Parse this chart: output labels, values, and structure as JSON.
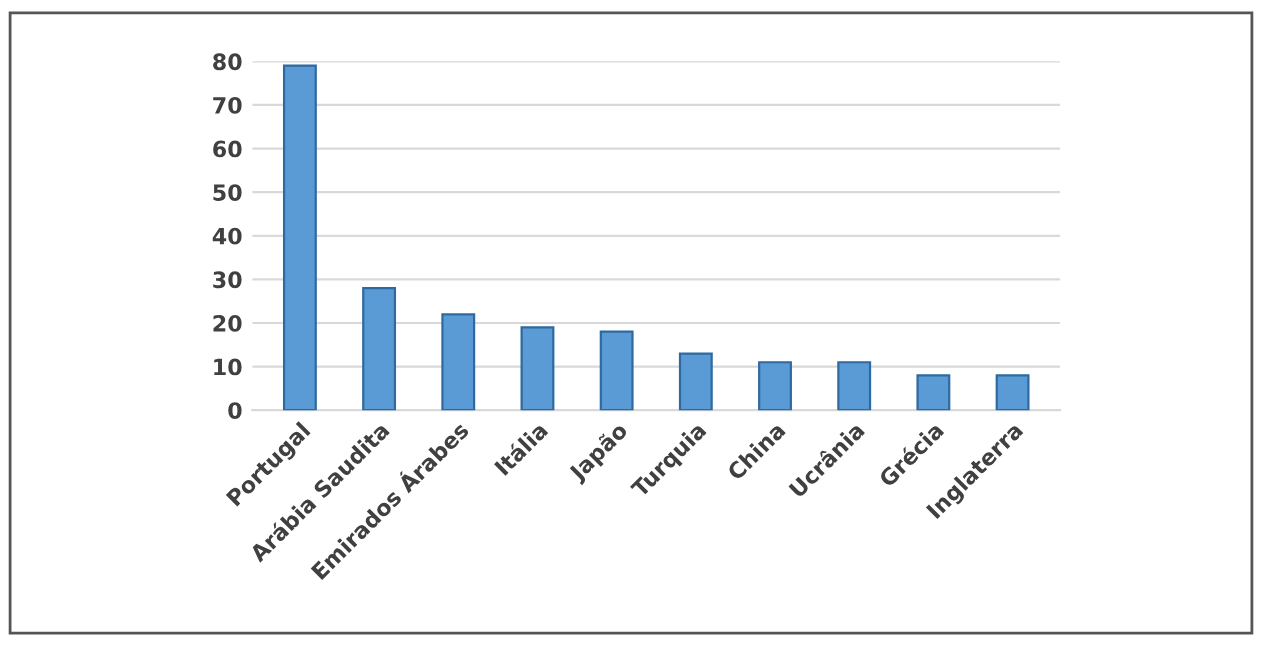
{
  "chart_data": {
    "type": "bar",
    "categories": [
      "Portugal",
      "Arábia Saudita",
      "Emirados Árabes",
      "Itália",
      "Japão",
      "Turquia",
      "China",
      "Ucrânia",
      "Grécia",
      "Inglaterra"
    ],
    "values": [
      79,
      28,
      22,
      19,
      18,
      13,
      11,
      11,
      8,
      8
    ],
    "color": "#5b9bd5",
    "ylim": [
      0,
      80
    ],
    "yticks": [
      0,
      10,
      20,
      30,
      40,
      50,
      60,
      70,
      80
    ],
    "grid": "y",
    "legend": false
  }
}
